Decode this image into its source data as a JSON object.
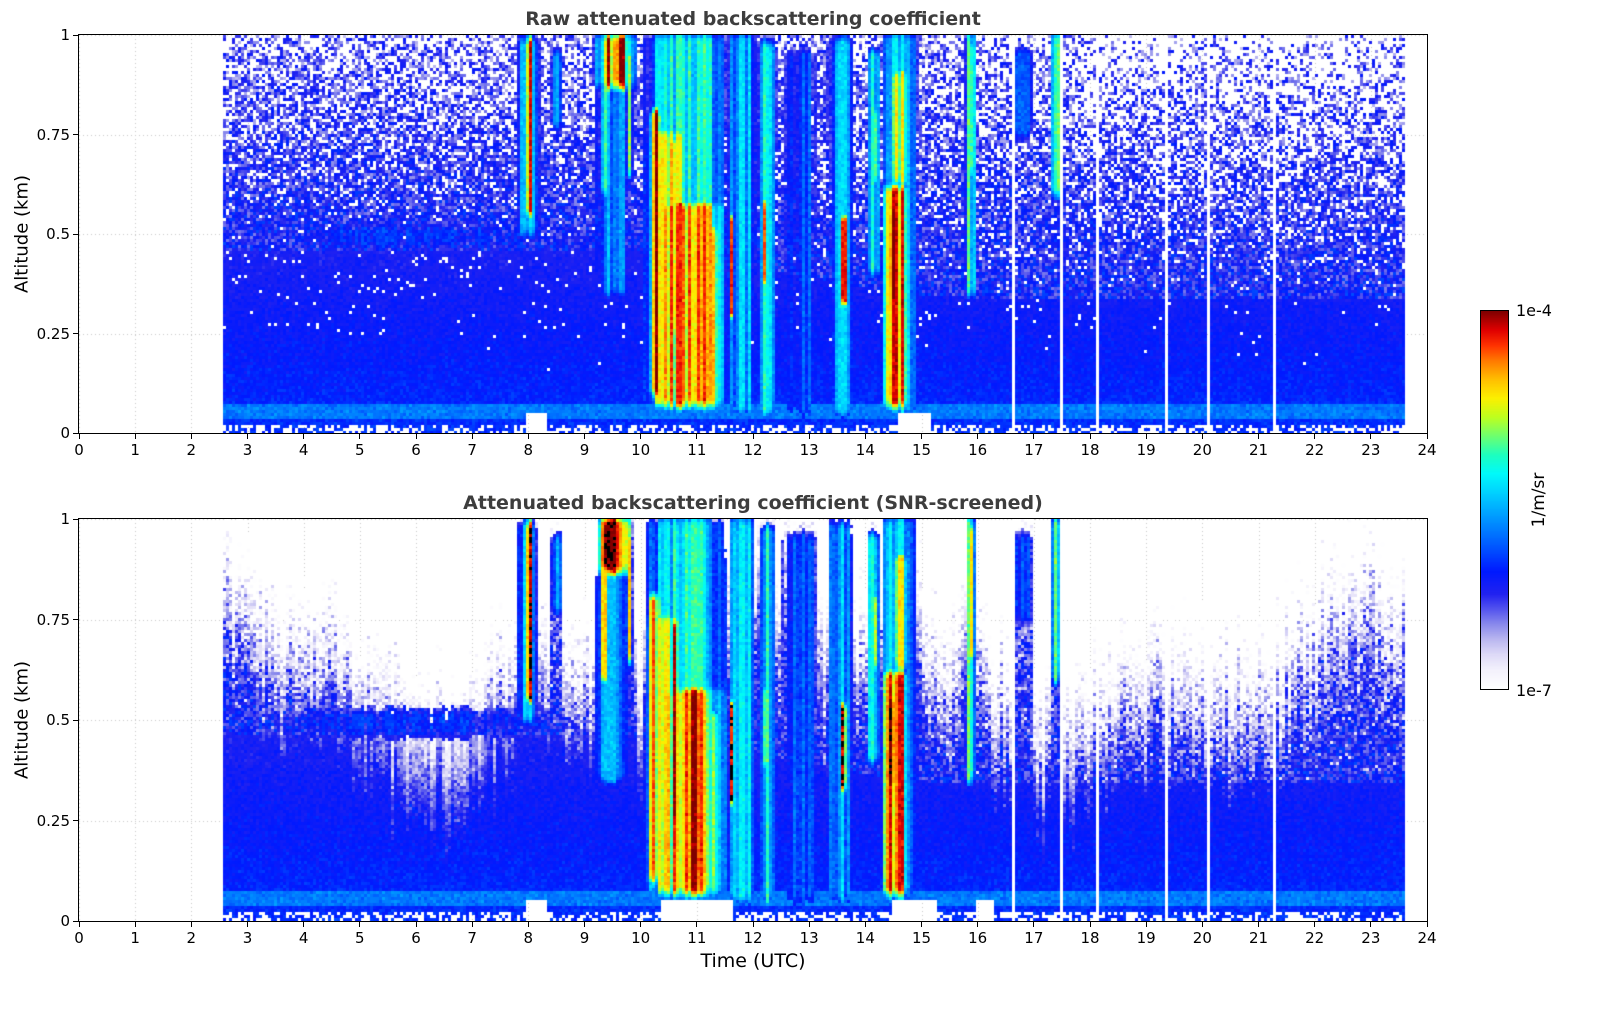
{
  "chart_data": {
    "type": "heatmap",
    "panels": [
      {
        "title": "Raw attenuated backscattering coefficient",
        "screened": false
      },
      {
        "title": "Attenuated backscattering coefficient (SNR-screened)",
        "screened": true
      }
    ],
    "xlabel": "Time (UTC)",
    "ylabel": "Altitude (km)",
    "xlim": [
      0,
      24
    ],
    "ylim": [
      0,
      1
    ],
    "xticks": [
      0,
      1,
      2,
      3,
      4,
      5,
      6,
      7,
      8,
      9,
      10,
      11,
      12,
      13,
      14,
      15,
      16,
      17,
      18,
      19,
      20,
      21,
      22,
      23,
      24
    ],
    "yticks": [
      0,
      0.25,
      0.5,
      0.75,
      1
    ],
    "grid": "dotted",
    "colorbar": {
      "label": "1/m/sr",
      "min": "1e-7",
      "max": "1e-4",
      "scale": "log10",
      "stops": [
        [
          0.0,
          255,
          255,
          255
        ],
        [
          0.05,
          243,
          241,
          252
        ],
        [
          0.09,
          222,
          218,
          247
        ],
        [
          0.13,
          186,
          183,
          240
        ],
        [
          0.17,
          138,
          138,
          236
        ],
        [
          0.21,
          84,
          84,
          238
        ],
        [
          0.25,
          34,
          34,
          240
        ],
        [
          0.31,
          0,
          25,
          255
        ],
        [
          0.38,
          0,
          90,
          255
        ],
        [
          0.45,
          0,
          150,
          255
        ],
        [
          0.52,
          0,
          210,
          255
        ],
        [
          0.57,
          0,
          250,
          250
        ],
        [
          0.62,
          30,
          255,
          190
        ],
        [
          0.67,
          110,
          255,
          110
        ],
        [
          0.72,
          190,
          255,
          30
        ],
        [
          0.77,
          252,
          240,
          0
        ],
        [
          0.82,
          255,
          190,
          0
        ],
        [
          0.87,
          255,
          120,
          0
        ],
        [
          0.91,
          255,
          50,
          0
        ],
        [
          0.95,
          225,
          0,
          0
        ],
        [
          1.0,
          128,
          0,
          0
        ]
      ]
    },
    "features": {
      "seed": 42,
      "data_extent": [
        2.55,
        23.6
      ],
      "gap_lines": [
        16.62,
        17.04,
        17.5,
        18.12,
        19.36,
        20.12,
        21.3
      ],
      "ground_gaps": {
        "raw": [
          [
            7.95,
            8.35
          ],
          [
            14.6,
            15.15
          ]
        ],
        "screened": [
          [
            7.95,
            8.35
          ],
          [
            10.35,
            11.65
          ],
          [
            14.5,
            15.3
          ],
          [
            15.95,
            16.3
          ]
        ]
      },
      "plumes": [
        [
          8.02,
          0.1,
          0.5,
          1.03,
          -4.15,
          1
        ],
        [
          8.0,
          0.25,
          0.45,
          1.03,
          -5.4,
          0
        ],
        [
          8.5,
          0.13,
          0.72,
          1.0,
          -5.5,
          0
        ],
        [
          9.55,
          0.45,
          0.82,
          1.04,
          -4.0,
          1
        ],
        [
          9.5,
          0.42,
          0.3,
          0.9,
          -5.5,
          0
        ],
        [
          9.35,
          0.07,
          0.55,
          1.0,
          -4.6,
          0
        ],
        [
          9.8,
          0.07,
          0.6,
          1.0,
          -4.5,
          0
        ],
        [
          10.8,
          0.9,
          0.02,
          0.62,
          -4.25,
          0
        ],
        [
          10.8,
          0.95,
          0.45,
          1.04,
          -5.1,
          0
        ],
        [
          10.5,
          0.55,
          0.28,
          0.8,
          -4.7,
          0
        ],
        [
          10.25,
          0.13,
          0.05,
          0.85,
          -4.0,
          0
        ],
        [
          10.6,
          0.1,
          0.2,
          0.78,
          -4.05,
          0
        ],
        [
          10.95,
          0.12,
          0.02,
          0.62,
          -4.0,
          0
        ],
        [
          11.3,
          0.1,
          0.02,
          0.56,
          -4.1,
          0
        ],
        [
          11.8,
          0.32,
          0.0,
          1.04,
          -5.3,
          0
        ],
        [
          11.62,
          0.07,
          0.25,
          0.58,
          -4.25,
          1
        ],
        [
          12.25,
          0.2,
          0.0,
          1.02,
          -5.15,
          0
        ],
        [
          12.22,
          0.06,
          0.33,
          0.62,
          -4.3,
          1
        ],
        [
          12.85,
          0.42,
          0.0,
          1.0,
          -5.8,
          0
        ],
        [
          13.55,
          0.28,
          0.0,
          1.03,
          -5.4,
          0
        ],
        [
          13.62,
          0.1,
          0.28,
          0.58,
          -4.2,
          1
        ],
        [
          14.15,
          0.16,
          0.35,
          1.0,
          -5.2,
          0
        ],
        [
          14.18,
          0.08,
          0.58,
          0.85,
          -4.5,
          0
        ],
        [
          14.6,
          0.42,
          0.0,
          1.04,
          -5.3,
          0
        ],
        [
          14.55,
          0.32,
          0.02,
          0.66,
          -4.15,
          0
        ],
        [
          14.5,
          0.14,
          0.28,
          0.6,
          -3.92,
          1
        ],
        [
          14.62,
          0.24,
          0.58,
          0.95,
          -4.65,
          0
        ],
        [
          15.88,
          0.13,
          0.3,
          1.04,
          -5.0,
          0
        ],
        [
          15.9,
          0.07,
          0.6,
          1.02,
          -4.35,
          0
        ],
        [
          16.8,
          0.25,
          0.7,
          1.0,
          -5.85,
          0
        ],
        [
          17.42,
          0.14,
          0.55,
          1.04,
          -5.0,
          0
        ],
        [
          17.47,
          0.06,
          0.7,
          1.03,
          -4.5,
          0
        ],
        [
          6.0,
          3.6,
          0.42,
          0.56,
          -5.95,
          0
        ]
      ]
    }
  }
}
